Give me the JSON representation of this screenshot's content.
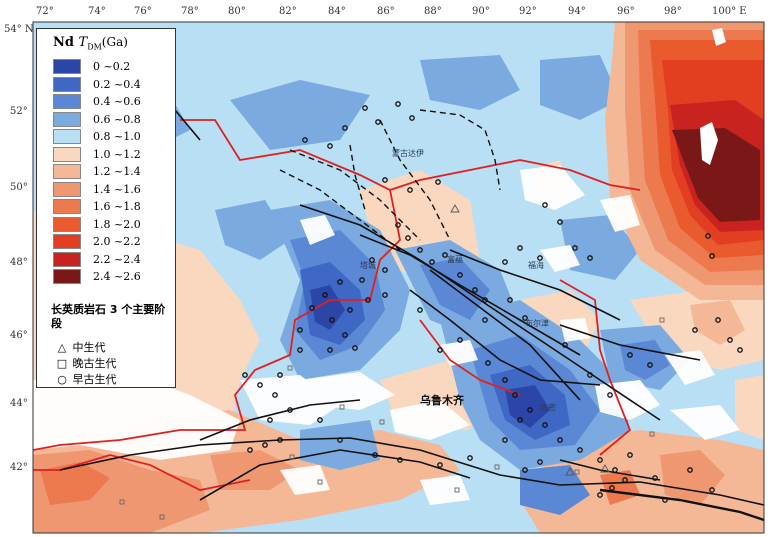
{
  "map": {
    "top_ticks": [
      "72°",
      "74°",
      "76°",
      "78°",
      "80°",
      "82°",
      "84°",
      "86°",
      "88°",
      "90°",
      "92°",
      "94°",
      "96°",
      "98°",
      "100° E"
    ],
    "left_ticks": [
      "54° N",
      "52°",
      "50°",
      "48°",
      "46°",
      "44°",
      "42°"
    ],
    "places": {
      "mongol_altai": "蒙古达伊",
      "tacheng": "塔城",
      "fuyun": "富蕴",
      "bulqin": "布尔津",
      "kelamayi": "克拉玛依",
      "urumqi": "乌鲁木齐",
      "hami": "哈密",
      "fuhai": "福海"
    }
  },
  "legend": {
    "title_element": "Nd",
    "title_t": "T",
    "title_sub": "DM",
    "title_unit": "(Ga)",
    "classes": [
      {
        "label": "0 ~0.2",
        "color": "#2c46a8"
      },
      {
        "label": "0.2 ~0.4",
        "color": "#3f68c4"
      },
      {
        "label": "0.4 ~0.6",
        "color": "#5a88d4"
      },
      {
        "label": "0.6 ~0.8",
        "color": "#7aaadf"
      },
      {
        "label": "0.8 ~1.0",
        "color": "#b9dff4"
      },
      {
        "label": "1.0 ~1.2",
        "color": "#f9d8bf"
      },
      {
        "label": "1.2 ~1.4",
        "color": "#f4b896"
      },
      {
        "label": "1.4 ~1.6",
        "color": "#ef9771"
      },
      {
        "label": "1.6 ~1.8",
        "color": "#ec7a4e"
      },
      {
        "label": "1.8 ~2.0",
        "color": "#e95a2e"
      },
      {
        "label": "2.0 ~2.2",
        "color": "#e23e22"
      },
      {
        "label": "2.2 ~2.4",
        "color": "#c8231f"
      },
      {
        "label": "2.4 ~2.6",
        "color": "#7a1818"
      }
    ],
    "stage_title": "长英质岩石 3 个主要阶段",
    "symbols": [
      {
        "mark": "△",
        "label": "中生代"
      },
      {
        "mark": "□",
        "label": "晚古生代"
      },
      {
        "mark": "○",
        "label": "早古生代"
      }
    ]
  }
}
